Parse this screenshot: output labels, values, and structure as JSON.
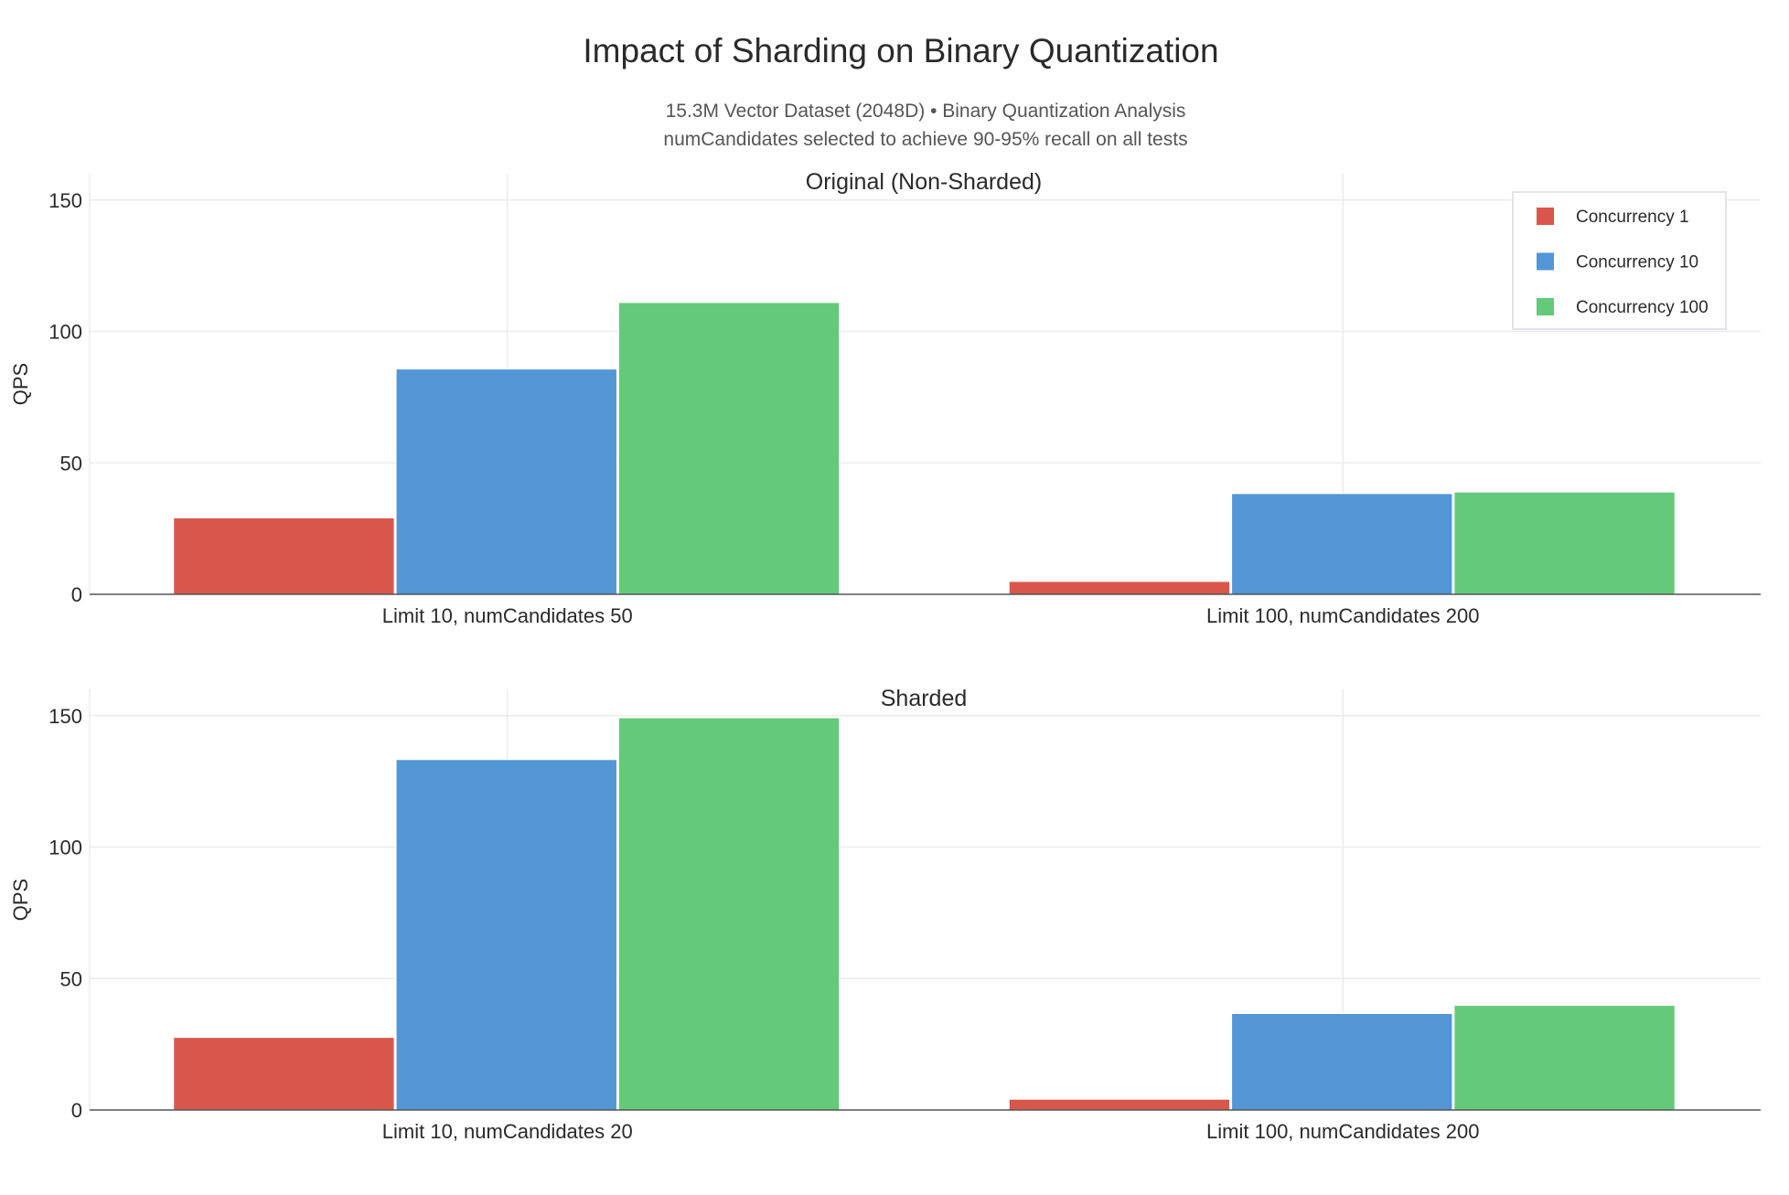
{
  "chart_data": {
    "type": "bar",
    "title": "Impact of Sharding on Binary Quantization",
    "subtitle": [
      "15.3M Vector Dataset (2048D) • Binary Quantization Analysis",
      "numCandidates selected to achieve 90-95% recall on all tests"
    ],
    "legend": {
      "placement": "top-right",
      "entries": [
        "Concurrency 1",
        "Concurrency 10",
        "Concurrency 100"
      ]
    },
    "colors": [
      "#d9574a",
      "#5296d5",
      "#64c97a"
    ],
    "grid": true,
    "subplots": [
      {
        "title": "Original (Non-Sharded)",
        "ylabel": "QPS",
        "ylim": [
          0,
          160
        ],
        "yticks": [
          0,
          50,
          100,
          150
        ],
        "categories": [
          "Limit 10, numCandidates 50",
          "Limit 100, numCandidates 200"
        ],
        "series": [
          {
            "name": "Concurrency 1",
            "values": [
              29.1,
              4.9
            ]
          },
          {
            "name": "Concurrency 10",
            "values": [
              85.7,
              38.3
            ]
          },
          {
            "name": "Concurrency 100",
            "values": [
              111.0,
              38.9
            ]
          }
        ]
      },
      {
        "title": "Sharded",
        "ylabel": "QPS",
        "ylim": [
          0,
          160
        ],
        "yticks": [
          0,
          50,
          100,
          150
        ],
        "categories": [
          "Limit 10, numCandidates 20",
          "Limit 100, numCandidates 200"
        ],
        "series": [
          {
            "name": "Concurrency 1",
            "values": [
              27.6,
              4.1
            ]
          },
          {
            "name": "Concurrency 10",
            "values": [
              133.3,
              36.7
            ]
          },
          {
            "name": "Concurrency 100",
            "values": [
              149.2,
              39.8
            ]
          }
        ]
      }
    ]
  }
}
